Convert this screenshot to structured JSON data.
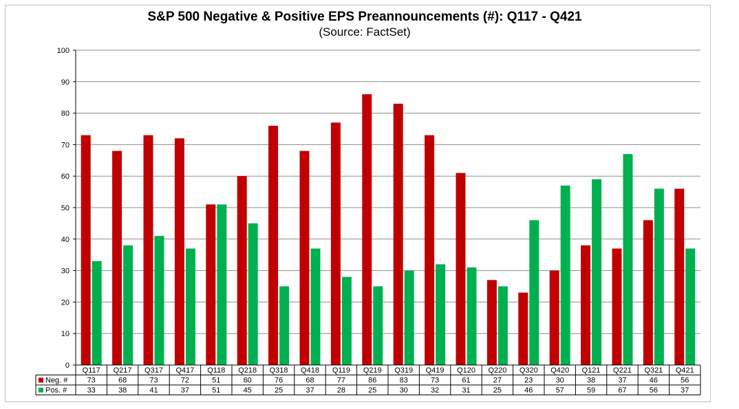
{
  "chart_data": {
    "type": "bar",
    "title": "S&P 500 Negative & Positive EPS Preannouncements (#): Q117 - Q421",
    "subtitle": "(Source: FactSet)",
    "categories": [
      "Q117",
      "Q217",
      "Q317",
      "Q417",
      "Q118",
      "Q218",
      "Q318",
      "Q418",
      "Q119",
      "Q219",
      "Q319",
      "Q419",
      "Q120",
      "Q220",
      "Q320",
      "Q420",
      "Q121",
      "Q221",
      "Q321",
      "Q421"
    ],
    "series": [
      {
        "name": "Neg. #",
        "color": "#c00000",
        "values": [
          73,
          68,
          73,
          72,
          51,
          60,
          76,
          68,
          77,
          86,
          83,
          73,
          61,
          27,
          23,
          30,
          38,
          37,
          46,
          56
        ]
      },
      {
        "name": "Pos. #",
        "color": "#00b050",
        "values": [
          33,
          38,
          41,
          37,
          51,
          45,
          25,
          37,
          28,
          25,
          30,
          32,
          31,
          25,
          46,
          57,
          59,
          67,
          56,
          37
        ]
      }
    ],
    "ylim": [
      0,
      100
    ],
    "yticks": [
      0,
      10,
      20,
      30,
      40,
      50,
      60,
      70,
      80,
      90,
      100
    ],
    "grid": true,
    "xlabel": "",
    "ylabel": "",
    "legend": "data-table"
  }
}
